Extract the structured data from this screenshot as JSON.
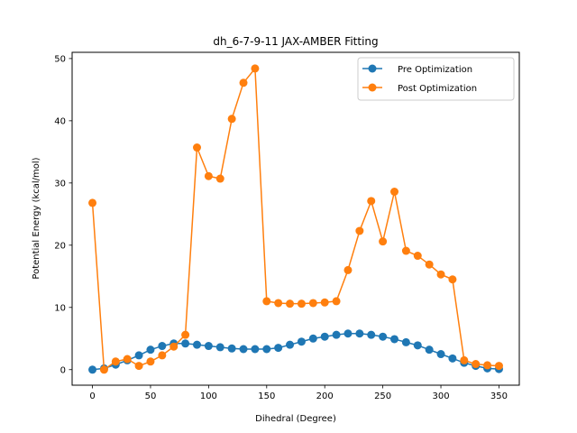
{
  "chart_data": {
    "type": "line",
    "title": "dh_6-7-9-11 JAX-AMBER Fitting",
    "xlabel": "Dihedral (Degree)",
    "ylabel": "Potential Energy (kcal/mol)",
    "xlim": [
      -17.5,
      367.5
    ],
    "ylim": [
      -2.5,
      51.0
    ],
    "xticks": [
      0,
      50,
      100,
      150,
      200,
      250,
      300,
      350
    ],
    "yticks": [
      0,
      10,
      20,
      30,
      40,
      50
    ],
    "grid": false,
    "legend_position": "top-right",
    "x": [
      0,
      10,
      20,
      30,
      40,
      50,
      60,
      70,
      80,
      90,
      100,
      110,
      120,
      130,
      140,
      150,
      160,
      170,
      180,
      190,
      200,
      210,
      220,
      230,
      240,
      250,
      260,
      270,
      280,
      290,
      300,
      310,
      320,
      330,
      340,
      350
    ],
    "series": [
      {
        "name": "Pre Optimization",
        "color": "#1f77b4",
        "values": [
          0.0,
          0.2,
          0.8,
          1.5,
          2.3,
          3.2,
          3.8,
          4.2,
          4.2,
          4.0,
          3.8,
          3.6,
          3.4,
          3.3,
          3.3,
          3.3,
          3.5,
          4.0,
          4.5,
          5.0,
          5.3,
          5.6,
          5.8,
          5.8,
          5.6,
          5.3,
          4.9,
          4.4,
          3.9,
          3.2,
          2.5,
          1.8,
          1.1,
          0.6,
          0.2,
          0.1
        ]
      },
      {
        "name": "Post Optimization",
        "color": "#ff7f0e",
        "values": [
          26.8,
          0.0,
          1.3,
          1.7,
          0.6,
          1.3,
          2.3,
          3.7,
          5.6,
          35.7,
          31.1,
          30.7,
          40.3,
          46.1,
          48.4,
          11.0,
          10.7,
          10.6,
          10.6,
          10.7,
          10.8,
          11.0,
          16.0,
          22.3,
          27.1,
          20.6,
          28.6,
          19.1,
          18.3,
          16.9,
          15.3,
          14.5,
          1.5,
          0.9,
          0.7,
          0.6
        ]
      }
    ]
  }
}
